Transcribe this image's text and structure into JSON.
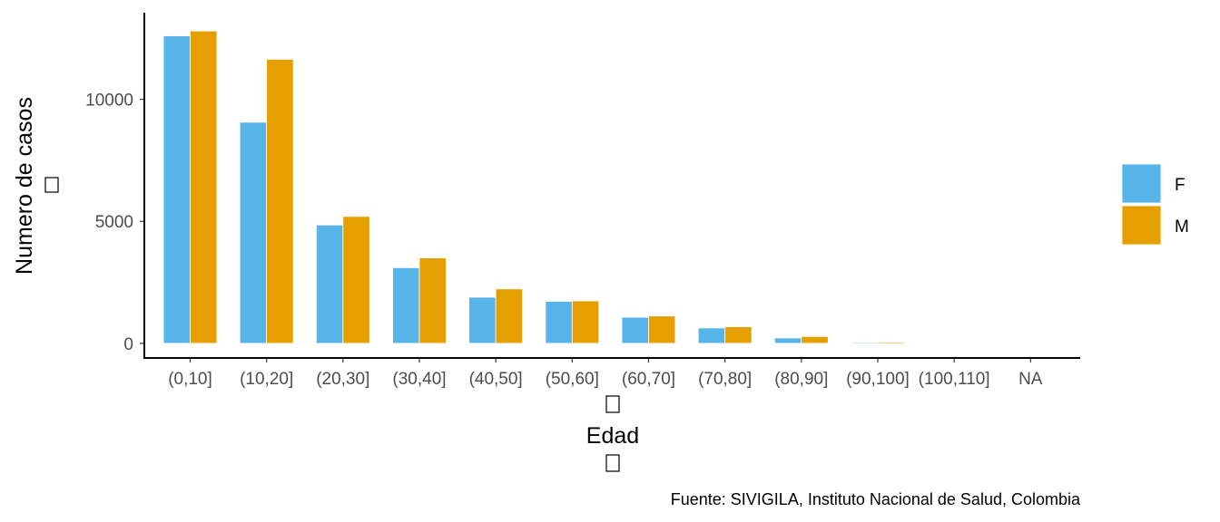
{
  "chart_data": {
    "type": "bar",
    "categories": [
      "(0,10]",
      "(10,20]",
      "(20,30]",
      "(30,40]",
      "(40,50]",
      "(50,60]",
      "(60,70]",
      "(70,80]",
      "(80,90]",
      "(90,100]",
      "(100,110]",
      "NA"
    ],
    "series": [
      {
        "name": "F",
        "color": "#56B4E9",
        "values": [
          12600,
          9060,
          4850,
          3100,
          1890,
          1720,
          1070,
          630,
          220,
          40,
          5,
          20
        ]
      },
      {
        "name": "M",
        "color": "#E69F00",
        "values": [
          12800,
          11640,
          5200,
          3500,
          2230,
          1740,
          1120,
          680,
          280,
          50,
          5,
          25
        ]
      }
    ],
    "xlabel": "Edad",
    "ylabel": "Numero de casos",
    "yticks": [
      0,
      5000,
      10000
    ],
    "ylim": [
      -600,
      13550
    ],
    "legend": {
      "position": "right",
      "items": [
        "F",
        "M"
      ]
    },
    "caption": "Fuente: SIVIGILA, Instituto Nacional de Salud, Colombia",
    "grid": false
  }
}
